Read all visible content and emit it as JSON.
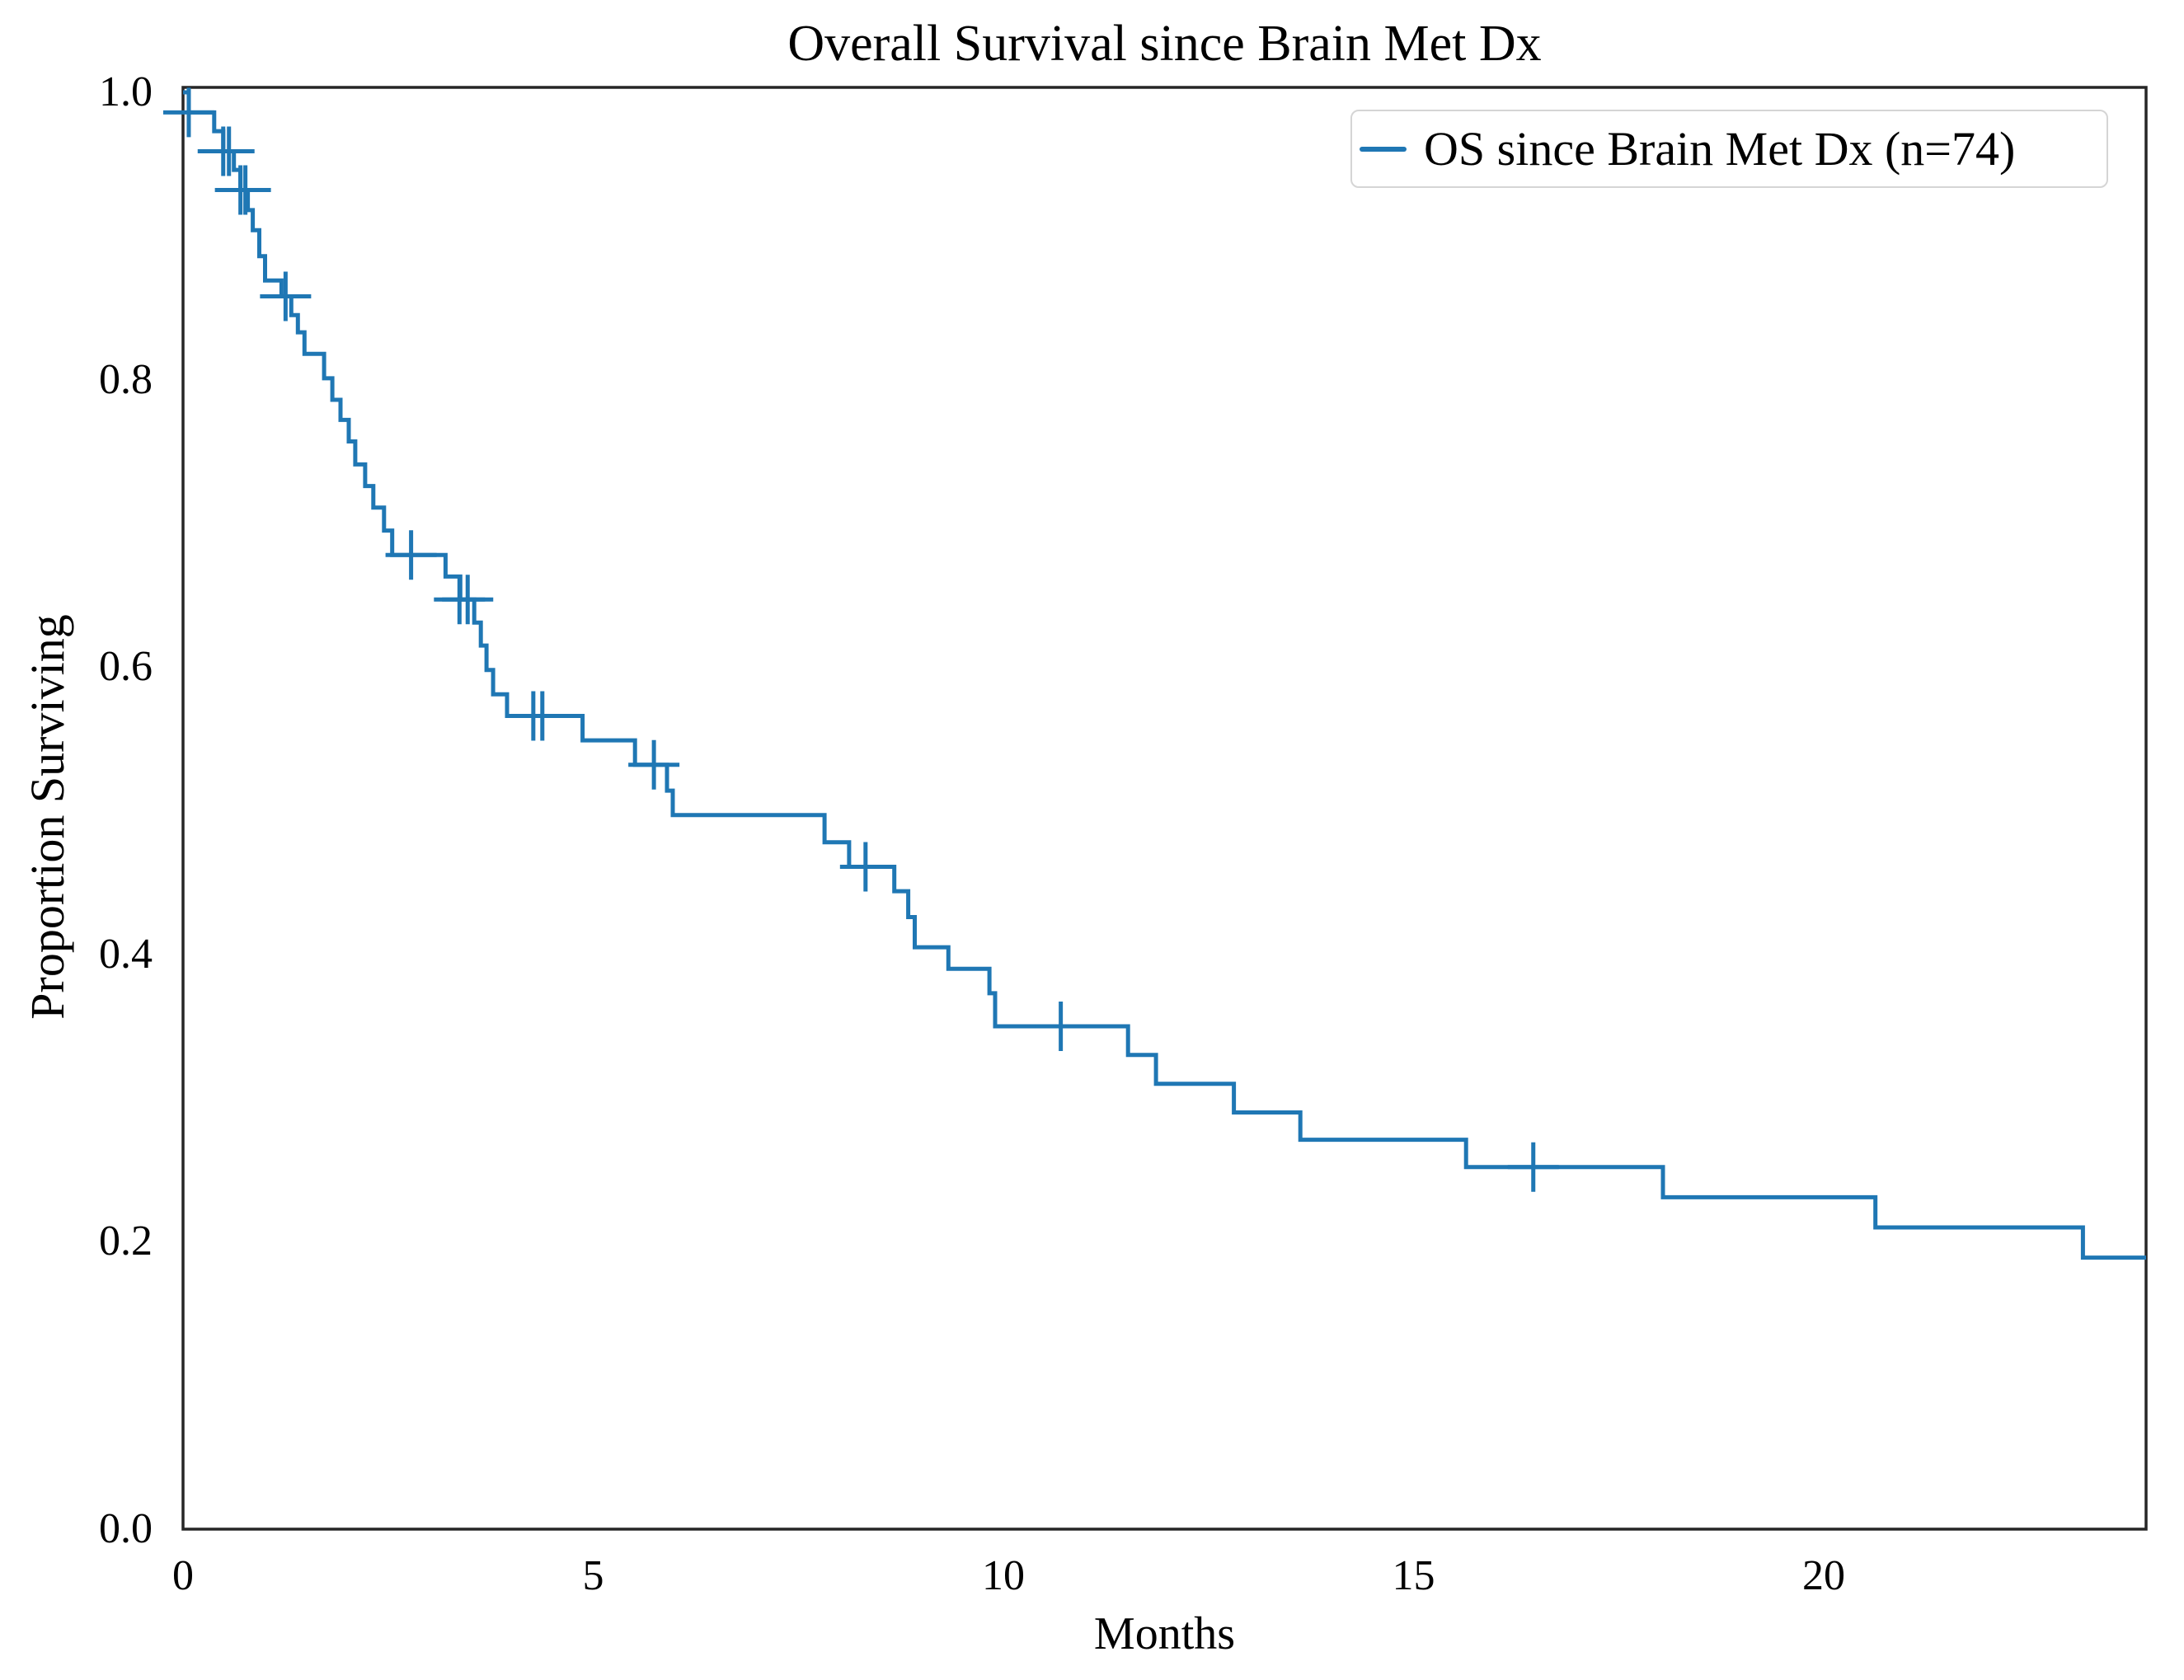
{
  "figure": {
    "title": "Overall Survival since Brain Met Dx"
  },
  "axes": {
    "x": {
      "label": "Months",
      "tick_labels": [
        "0",
        "5",
        "10",
        "15",
        "20"
      ],
      "tick_values": [
        0,
        5,
        10,
        15,
        20
      ],
      "min": 0,
      "max": 23.93
    },
    "y": {
      "label": "Proportion Surviving",
      "tick_labels": [
        "0.0",
        "0.2",
        "0.4",
        "0.6",
        "0.8",
        "1.0"
      ],
      "tick_values": [
        0,
        0.2,
        0.4,
        0.6,
        0.8,
        1.0
      ],
      "min": 0,
      "max": 1.0
    }
  },
  "legend": {
    "entries": [
      {
        "label": "OS since Brain Met Dx (n=74)",
        "color": "#1f77b4"
      }
    ]
  },
  "colors": {
    "line": "#1f77b4",
    "spine": "#262626",
    "text": "#000000",
    "legend_border": "#d5d5d5",
    "background": "#ffffff"
  },
  "chart_data": {
    "type": "line",
    "subtype": "kaplan-meier-step",
    "title": "Overall Survival since Brain Met Dx",
    "xlabel": "Months",
    "ylabel": "Proportion Surviving",
    "xlim": [
      0,
      23.93
    ],
    "ylim": [
      0,
      1.0
    ],
    "grid": false,
    "legend_position": "upper right",
    "series": [
      {
        "name": "OS since Brain Met Dx (n=74)",
        "n": 74,
        "color": "#1f77b4",
        "end_time": 23.93,
        "steps": [
          [
            0.0,
            1.0
          ],
          [
            0.07,
            0.986
          ],
          [
            0.38,
            0.973
          ],
          [
            0.49,
            0.959
          ],
          [
            0.62,
            0.946
          ],
          [
            0.7,
            0.932
          ],
          [
            0.79,
            0.918
          ],
          [
            0.85,
            0.904
          ],
          [
            0.93,
            0.886
          ],
          [
            1.0,
            0.869
          ],
          [
            1.2,
            0.858
          ],
          [
            1.32,
            0.845
          ],
          [
            1.4,
            0.833
          ],
          [
            1.48,
            0.818
          ],
          [
            1.72,
            0.801
          ],
          [
            1.82,
            0.786
          ],
          [
            1.92,
            0.772
          ],
          [
            2.02,
            0.757
          ],
          [
            2.1,
            0.741
          ],
          [
            2.22,
            0.726
          ],
          [
            2.32,
            0.711
          ],
          [
            2.45,
            0.695
          ],
          [
            2.55,
            0.678
          ],
          [
            3.2,
            0.663
          ],
          [
            3.38,
            0.647
          ],
          [
            3.55,
            0.631
          ],
          [
            3.63,
            0.615
          ],
          [
            3.7,
            0.598
          ],
          [
            3.78,
            0.581
          ],
          [
            3.95,
            0.566
          ],
          [
            4.87,
            0.549
          ],
          [
            5.51,
            0.532
          ],
          [
            5.9,
            0.514
          ],
          [
            5.97,
            0.497
          ],
          [
            7.82,
            0.478
          ],
          [
            8.12,
            0.461
          ],
          [
            8.67,
            0.444
          ],
          [
            8.84,
            0.426
          ],
          [
            8.92,
            0.405
          ],
          [
            9.33,
            0.39
          ],
          [
            9.83,
            0.373
          ],
          [
            9.9,
            0.35
          ],
          [
            11.52,
            0.33
          ],
          [
            11.86,
            0.31
          ],
          [
            12.81,
            0.29
          ],
          [
            13.62,
            0.271
          ],
          [
            15.64,
            0.252
          ],
          [
            18.04,
            0.231
          ],
          [
            20.63,
            0.21
          ],
          [
            23.16,
            0.189
          ]
        ],
        "censor_marks": [
          [
            0.07,
            0.986
          ],
          [
            0.49,
            0.959
          ],
          [
            0.56,
            0.959
          ],
          [
            0.7,
            0.932
          ],
          [
            0.76,
            0.932
          ],
          [
            1.25,
            0.858
          ],
          [
            2.78,
            0.678
          ],
          [
            3.37,
            0.647
          ],
          [
            3.47,
            0.647
          ],
          [
            4.27,
            0.566
          ],
          [
            4.38,
            0.566
          ],
          [
            5.74,
            0.532
          ],
          [
            8.32,
            0.461
          ],
          [
            10.7,
            0.35
          ],
          [
            16.46,
            0.252
          ]
        ]
      }
    ]
  }
}
